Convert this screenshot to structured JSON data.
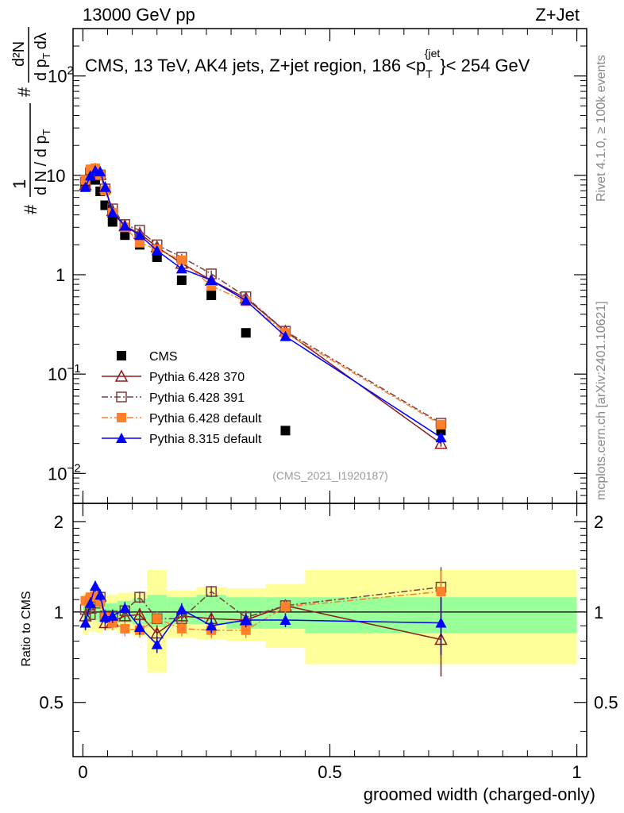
{
  "header": {
    "left": "13000 GeV pp",
    "right": "Z+Jet",
    "title_main": "CMS, 13 TeV, AK4 jets, Z+jet region, 186 <p",
    "title_sub": "T",
    "title_sup": "{jet",
    "title_close": "}< 254 GeV",
    "side_top": "Rivet 4.1.0, ≥ 100k events",
    "side_bottom": "mcplots.cern.ch [arXiv:2401.10621]",
    "watermark": "(CMS_2021_I1920187)",
    "ylabel_top": "#  1/(dN/dp_T^#)  d²N/(dp_T^# dλ)",
    "ylabel_parts": {
      "hash": "#",
      "one": "1",
      "dn": "d N / d p",
      "t": "T",
      "d2n": "d²N",
      "dpt": "d p",
      "dl": "dλ"
    },
    "ylabel_bottom": "Ratio to CMS",
    "xlabel": "groomed width (charged-only)"
  },
  "chart_data": {
    "type": "scatter",
    "xlabel": "groomed width (charged-only)",
    "x_range": [
      -0.02,
      1.02
    ],
    "top_panel": {
      "yscale": "log",
      "ylim": [
        0.005,
        300
      ],
      "y_ticks": [
        {
          "value": 0.01,
          "base": "10",
          "exp": "−2"
        },
        {
          "value": 0.1,
          "base": "10",
          "exp": "−1"
        },
        {
          "value": 1,
          "base": "1",
          "exp": ""
        },
        {
          "value": 10,
          "base": "10",
          "exp": ""
        },
        {
          "value": 100,
          "base": "10",
          "exp": "2"
        }
      ]
    },
    "ratio_panel": {
      "ylabel": "Ratio to CMS",
      "ylim": [
        0.33,
        2.3
      ],
      "y_ticks": [
        {
          "value": 0.5,
          "label": "0.5"
        },
        {
          "value": 1,
          "label": "1"
        },
        {
          "value": 2,
          "label": "2"
        }
      ],
      "band_edges": [
        0,
        0.01,
        0.02,
        0.03,
        0.04,
        0.05,
        0.07,
        0.1,
        0.13,
        0.17,
        0.23,
        0.29,
        0.37,
        0.45,
        1.0
      ],
      "band_inner": [
        [
          0.93,
          1.07
        ],
        [
          0.95,
          1.05
        ],
        [
          0.94,
          1.07
        ],
        [
          0.93,
          1.08
        ],
        [
          0.93,
          1.07
        ],
        [
          0.93,
          1.07
        ],
        [
          0.92,
          1.09
        ],
        [
          0.91,
          1.11
        ],
        [
          0.89,
          1.14
        ],
        [
          0.91,
          1.12
        ],
        [
          0.91,
          1.14
        ],
        [
          0.88,
          1.12
        ],
        [
          0.88,
          1.12
        ],
        [
          0.85,
          1.12
        ]
      ],
      "band_outer": [
        [
          0.84,
          1.15
        ],
        [
          0.86,
          1.14
        ],
        [
          0.86,
          1.14
        ],
        [
          0.85,
          1.14
        ],
        [
          0.87,
          1.13
        ],
        [
          0.87,
          1.14
        ],
        [
          0.85,
          1.16
        ],
        [
          0.83,
          1.17
        ],
        [
          0.63,
          1.38
        ],
        [
          0.82,
          1.18
        ],
        [
          0.81,
          1.21
        ],
        [
          0.8,
          1.2
        ],
        [
          0.76,
          1.24
        ],
        [
          0.67,
          1.38
        ]
      ]
    },
    "x_ticks": [
      {
        "value": 0,
        "label": "0"
      },
      {
        "value": 0.5,
        "label": "0.5"
      },
      {
        "value": 1,
        "label": "1"
      }
    ],
    "x": [
      0.005,
      0.015,
      0.025,
      0.035,
      0.045,
      0.06,
      0.085,
      0.115,
      0.15,
      0.2,
      0.26,
      0.33,
      0.41,
      0.725
    ],
    "series": [
      {
        "name": "CMS",
        "color": "#000000",
        "marker": "square-filled",
        "line": "none",
        "values": [
          8.2,
          10.3,
          9.0,
          6.9,
          5.0,
          3.4,
          2.5,
          2.0,
          1.5,
          0.88,
          0.62,
          0.26,
          0.027,
          0.027
        ],
        "ratio": [
          1,
          1,
          1,
          1,
          1,
          1,
          1,
          1,
          1,
          1,
          1,
          1,
          1,
          1
        ]
      },
      {
        "name": "Pythia 6.428 370",
        "color": "#8b1a1a",
        "marker": "triangle-open",
        "line": "solid",
        "values": [
          8.0,
          10.6,
          11.5,
          10.2,
          7.5,
          4.4,
          3.1,
          2.6,
          1.9,
          1.3,
          0.88,
          0.58,
          0.27,
          0.02
        ],
        "ratio": [
          0.97,
          1.03,
          1.12,
          1.13,
          0.92,
          0.93,
          0.97,
          0.98,
          0.85,
          0.97,
          0.95,
          0.94,
          1.05,
          0.81
        ]
      },
      {
        "name": "Pythia 6.428 391",
        "color": "#7a4040",
        "marker": "square-open",
        "line": "dashdot",
        "values": [
          8.5,
          10.6,
          11.0,
          10.1,
          7.3,
          4.6,
          3.2,
          2.8,
          2.0,
          1.5,
          1.02,
          0.6,
          0.27,
          0.032
        ],
        "ratio": [
          1.02,
          0.98,
          1.07,
          1.12,
          0.97,
          0.97,
          1.01,
          1.12,
          0.95,
          0.95,
          1.17,
          0.96,
          1.05,
          1.21
        ]
      },
      {
        "name": "Pythia 6.428 default",
        "color": "#ff7f2a",
        "marker": "square-filled",
        "line": "dashdot",
        "values": [
          9.0,
          11.5,
          11.8,
          10.1,
          7.0,
          4.2,
          3.0,
          2.1,
          1.8,
          1.4,
          0.77,
          0.54,
          0.26,
          0.031
        ],
        "ratio": [
          1.09,
          1.12,
          1.13,
          1.08,
          0.96,
          0.92,
          0.88,
          0.87,
          0.95,
          0.88,
          0.87,
          0.87,
          1.04,
          1.17
        ]
      },
      {
        "name": "Pythia 8.315 default",
        "color": "#0000ff",
        "marker": "triangle-filled",
        "line": "solid",
        "values": [
          7.6,
          9.9,
          11.2,
          10.9,
          7.6,
          4.2,
          3.1,
          2.5,
          1.75,
          1.15,
          0.88,
          0.55,
          0.24,
          0.023
        ],
        "ratio": [
          0.92,
          1.07,
          1.22,
          1.14,
          0.96,
          0.97,
          1.03,
          0.89,
          0.78,
          1.02,
          0.9,
          0.94,
          0.94,
          0.92
        ]
      }
    ]
  }
}
